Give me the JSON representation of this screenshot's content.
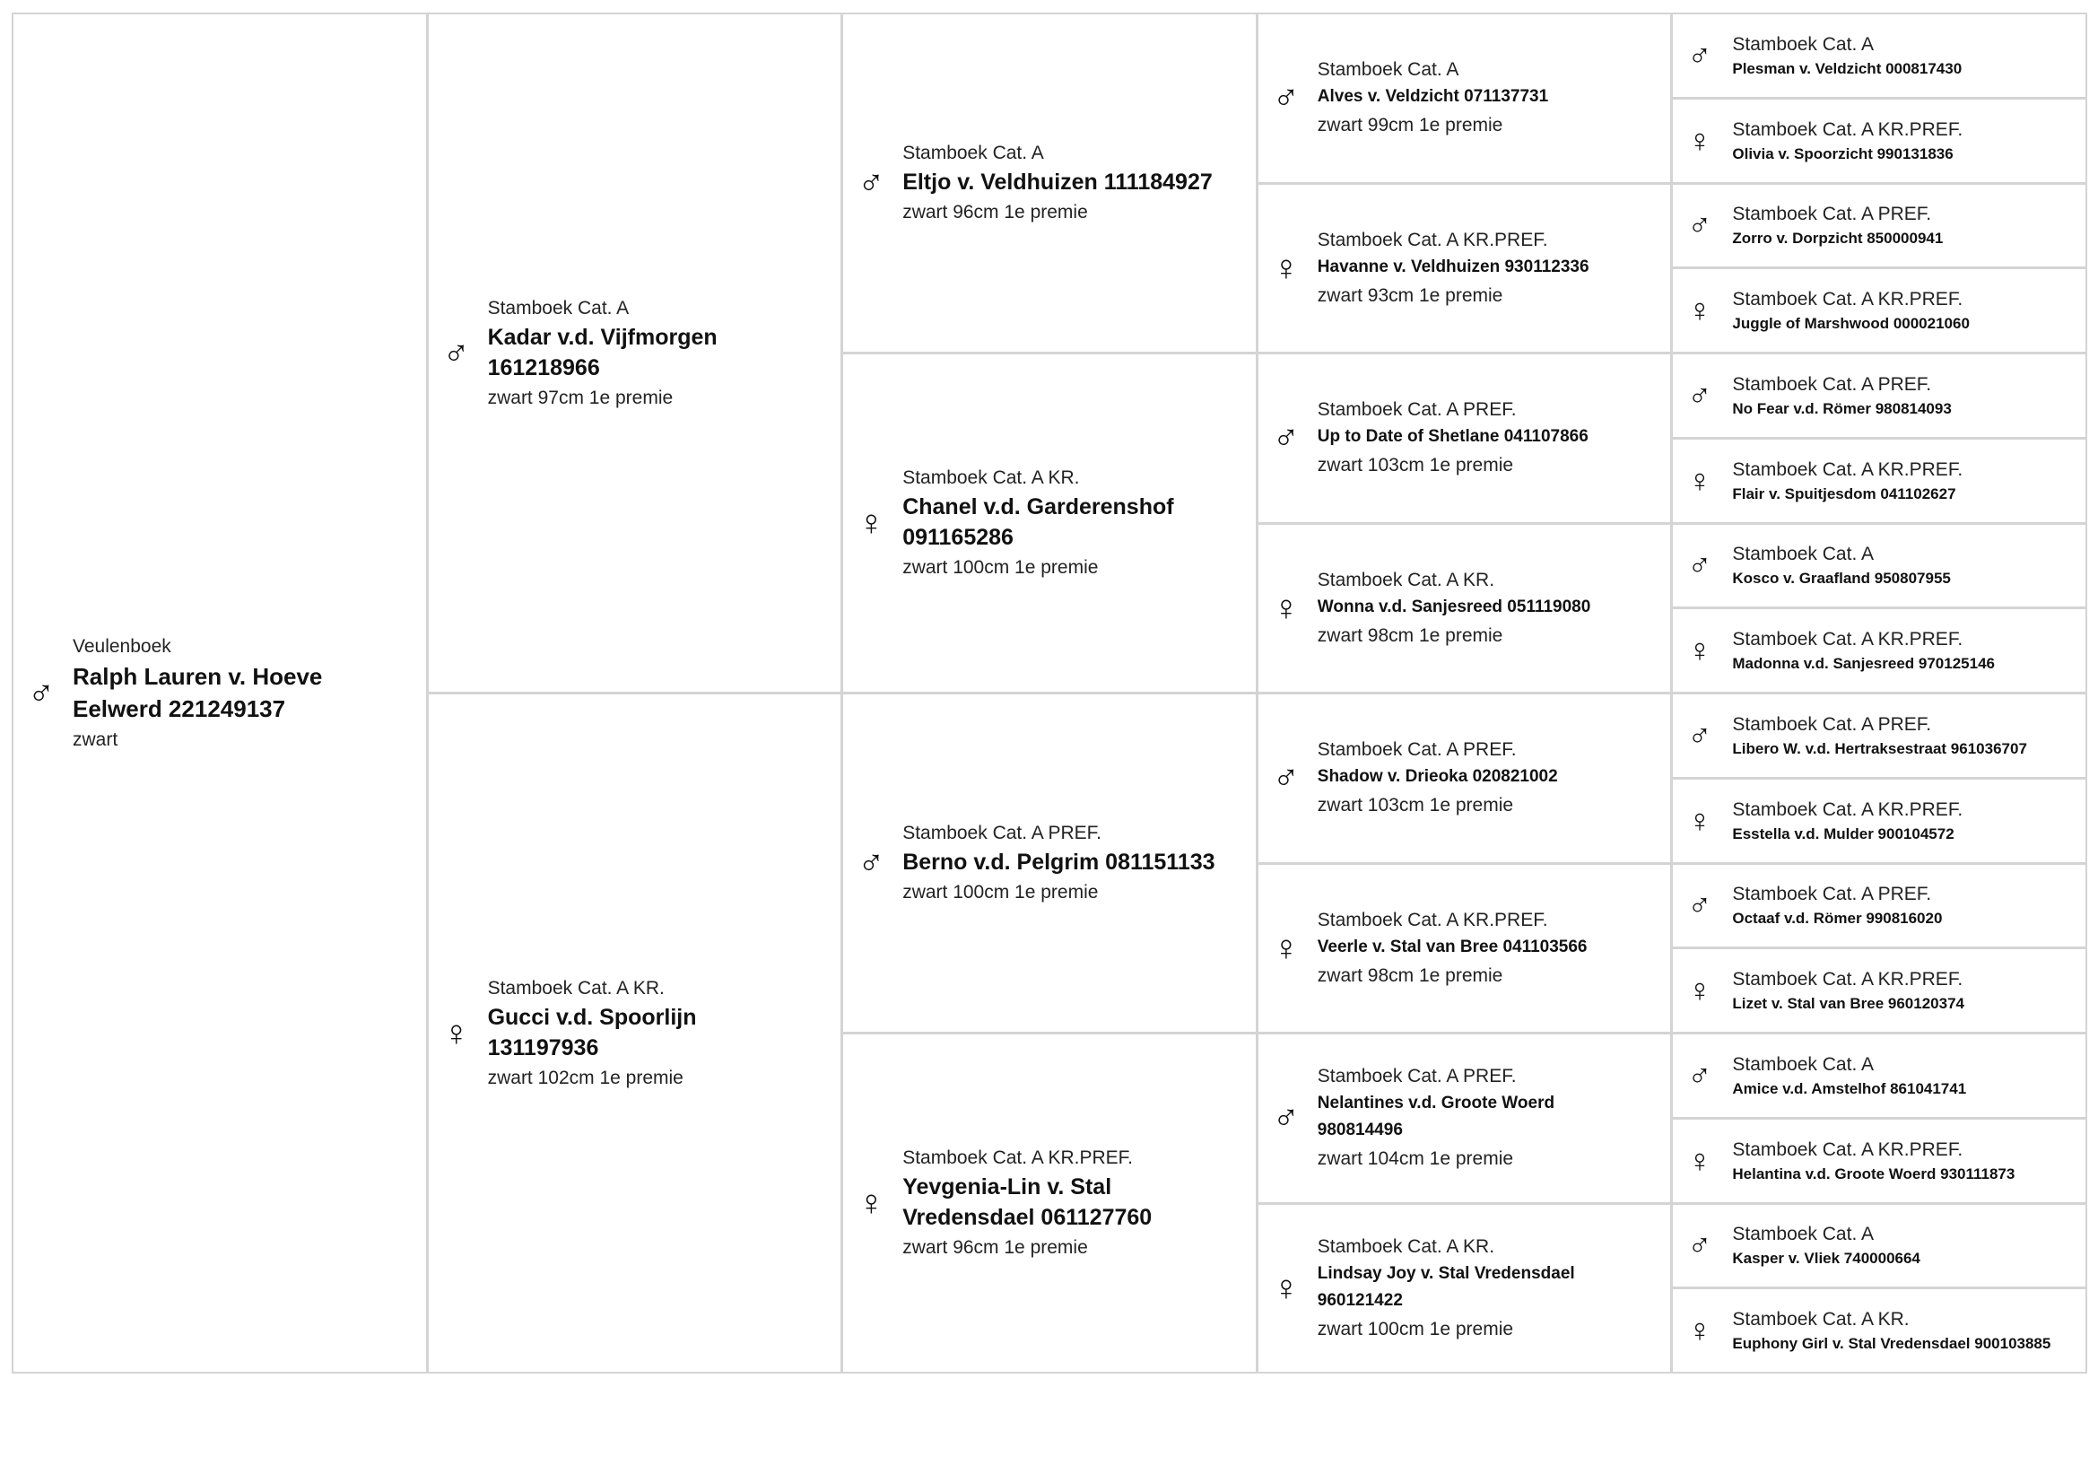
{
  "symbols": {
    "male": "♂",
    "female": "♀"
  },
  "generations": [
    [
      {
        "sex": "male",
        "reg": "Veulenboek",
        "name": "Ralph Lauren v. Hoeve Eelwerd 221249137",
        "info": "zwart"
      }
    ],
    [
      {
        "sex": "male",
        "reg": "Stamboek Cat. A",
        "name": "Kadar v.d. Vijfmorgen 161218966",
        "info": "zwart 97cm 1e premie"
      },
      {
        "sex": "female",
        "reg": "Stamboek Cat. A KR.",
        "name": "Gucci v.d. Spoorlijn 131197936",
        "info": "zwart 102cm 1e premie"
      }
    ],
    [
      {
        "sex": "male",
        "reg": "Stamboek Cat. A",
        "name": "Eltjo v. Veldhuizen 111184927",
        "info": "zwart 96cm 1e premie"
      },
      {
        "sex": "female",
        "reg": "Stamboek Cat. A KR.",
        "name": "Chanel v.d. Garderenshof 091165286",
        "info": "zwart 100cm 1e premie"
      },
      {
        "sex": "male",
        "reg": "Stamboek Cat. A PREF.",
        "name": "Berno v.d. Pelgrim 081151133",
        "info": "zwart 100cm 1e premie"
      },
      {
        "sex": "female",
        "reg": "Stamboek Cat. A KR.PREF.",
        "name": "Yevgenia-Lin v. Stal Vredensdael 061127760",
        "info": "zwart 96cm 1e premie"
      }
    ],
    [
      {
        "sex": "male",
        "reg": "Stamboek Cat. A",
        "name": "Alves v. Veldzicht 071137731",
        "info": "zwart 99cm 1e premie"
      },
      {
        "sex": "female",
        "reg": "Stamboek Cat. A KR.PREF.",
        "name": "Havanne v. Veldhuizen 930112336",
        "info": "zwart 93cm 1e premie"
      },
      {
        "sex": "male",
        "reg": "Stamboek Cat. A PREF.",
        "name": "Up to Date of Shetlane 041107866",
        "info": "zwart 103cm 1e premie"
      },
      {
        "sex": "female",
        "reg": "Stamboek Cat. A KR.",
        "name": "Wonna v.d. Sanjesreed 051119080",
        "info": "zwart 98cm 1e premie"
      },
      {
        "sex": "male",
        "reg": "Stamboek Cat. A PREF.",
        "name": "Shadow v. Drieoka 020821002",
        "info": "zwart 103cm 1e premie"
      },
      {
        "sex": "female",
        "reg": "Stamboek Cat. A KR.PREF.",
        "name": "Veerle v. Stal van Bree 041103566",
        "info": "zwart 98cm 1e premie"
      },
      {
        "sex": "male",
        "reg": "Stamboek Cat. A PREF.",
        "name": "Nelantines v.d. Groote Woerd 980814496",
        "info": "zwart 104cm 1e premie"
      },
      {
        "sex": "female",
        "reg": "Stamboek Cat. A KR.",
        "name": "Lindsay Joy v. Stal Vredensdael 960121422",
        "info": "zwart 100cm 1e premie"
      }
    ],
    [
      {
        "sex": "male",
        "reg": "Stamboek Cat. A",
        "name": "Plesman v. Veldzicht 000817430"
      },
      {
        "sex": "female",
        "reg": "Stamboek Cat. A KR.PREF.",
        "name": "Olivia v. Spoorzicht 990131836"
      },
      {
        "sex": "male",
        "reg": "Stamboek Cat. A PREF.",
        "name": "Zorro v. Dorpzicht 850000941"
      },
      {
        "sex": "female",
        "reg": "Stamboek Cat. A KR.PREF.",
        "name": "Juggle of Marshwood 000021060"
      },
      {
        "sex": "male",
        "reg": "Stamboek Cat. A PREF.",
        "name": "No Fear v.d. Römer 980814093"
      },
      {
        "sex": "female",
        "reg": "Stamboek Cat. A KR.PREF.",
        "name": "Flair v. Spuitjesdom 041102627"
      },
      {
        "sex": "male",
        "reg": "Stamboek Cat. A",
        "name": "Kosco v. Graafland 950807955"
      },
      {
        "sex": "female",
        "reg": "Stamboek Cat. A KR.PREF.",
        "name": "Madonna v.d. Sanjesreed 970125146"
      },
      {
        "sex": "male",
        "reg": "Stamboek Cat. A PREF.",
        "name": "Libero W. v.d. Hertraksestraat 961036707"
      },
      {
        "sex": "female",
        "reg": "Stamboek Cat. A KR.PREF.",
        "name": "Esstella v.d. Mulder 900104572"
      },
      {
        "sex": "male",
        "reg": "Stamboek Cat. A PREF.",
        "name": "Octaaf v.d. Römer 990816020"
      },
      {
        "sex": "female",
        "reg": "Stamboek Cat. A KR.PREF.",
        "name": "Lizet v. Stal van Bree 960120374"
      },
      {
        "sex": "male",
        "reg": "Stamboek Cat. A",
        "name": "Amice v.d. Amstelhof 861041741"
      },
      {
        "sex": "female",
        "reg": "Stamboek Cat. A KR.PREF.",
        "name": "Helantina v.d. Groote Woerd 930111873"
      },
      {
        "sex": "male",
        "reg": "Stamboek Cat. A",
        "name": "Kasper v. Vliek 740000664"
      },
      {
        "sex": "female",
        "reg": "Stamboek Cat. A KR.",
        "name": "Euphony Girl v. Stal Vredensdael 900103885"
      }
    ]
  ]
}
